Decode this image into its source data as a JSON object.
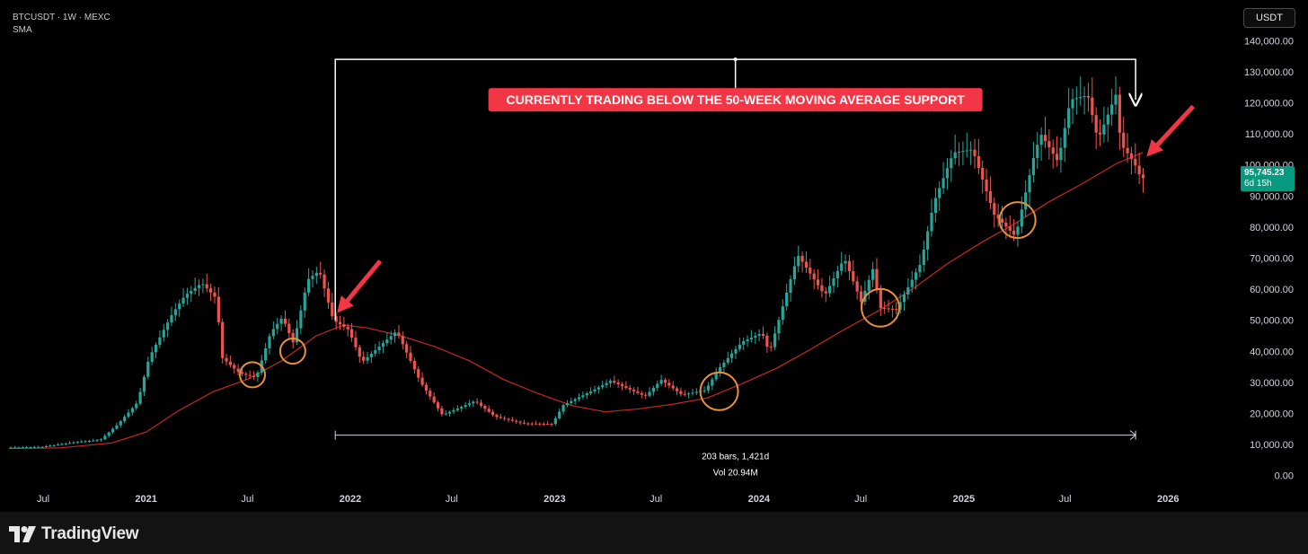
{
  "header": {
    "symbol_line": "BTCUSDT · 1W · MEXC",
    "indicator": "SMA"
  },
  "currency_button": "USDT",
  "last_price": {
    "value": "95,745.23",
    "countdown": "6d 15h",
    "color": "#089981"
  },
  "annotations": {
    "banner": "CURRENTLY TRADING BELOW THE 50-WEEK MOVING AVERAGE SUPPORT",
    "banner_color": "#f23645",
    "measure_line1": "203 bars, 1,421d",
    "measure_line2": "Vol 20.94M"
  },
  "brand": {
    "name": "TradingView",
    "icon": "tradingview-logo-icon"
  },
  "icons": [
    "red-arrow-icon",
    "white-arrow-icon",
    "support-circle-icon"
  ],
  "chart_data": {
    "type": "candlestick",
    "title": "BTCUSDT · 1W · MEXC",
    "up_color": "#26a69a",
    "down_color": "#ef5350",
    "sma_color": "#c62828",
    "y_ticks": [
      "140,000.00",
      "130,000.00",
      "120,000.00",
      "110,000.00",
      "100,000.00",
      "90,000.00",
      "80,000.00",
      "70,000.00",
      "60,000.00",
      "50,000.00",
      "40,000.00",
      "30,000.00",
      "20,000.00",
      "10,000.00",
      "0.00"
    ],
    "y_tick_values": [
      140000,
      130000,
      120000,
      110000,
      100000,
      90000,
      80000,
      70000,
      60000,
      50000,
      40000,
      30000,
      20000,
      10000,
      0
    ],
    "ylim": [
      -3000,
      143000
    ],
    "x_ticks": [
      "Jul",
      "2021",
      "Jul",
      "2022",
      "Jul",
      "2023",
      "Jul",
      "2024",
      "Jul",
      "2025",
      "Jul",
      "2026"
    ],
    "x_tick_dates": [
      "2020-07-01",
      "2021-01-01",
      "2021-07-01",
      "2022-01-01",
      "2022-07-01",
      "2023-01-01",
      "2023-07-01",
      "2024-01-01",
      "2024-07-01",
      "2025-01-01",
      "2025-07-01",
      "2026-01-01"
    ],
    "xlim": [
      "2020-05-01",
      "2026-05-01"
    ],
    "price_path": [
      [
        "2020-05-01",
        9000
      ],
      [
        "2020-07-01",
        9200
      ],
      [
        "2020-09-01",
        10800
      ],
      [
        "2020-10-15",
        11500
      ],
      [
        "2020-11-15",
        16500
      ],
      [
        "2020-12-20",
        23500
      ],
      [
        "2021-01-10",
        38000
      ],
      [
        "2021-02-20",
        52000
      ],
      [
        "2021-03-15",
        58000
      ],
      [
        "2021-04-14",
        62000
      ],
      [
        "2021-05-10",
        57000
      ],
      [
        "2021-05-20",
        38000
      ],
      [
        "2021-06-20",
        33000
      ],
      [
        "2021-07-20",
        31500
      ],
      [
        "2021-08-15",
        46000
      ],
      [
        "2021-09-05",
        51000
      ],
      [
        "2021-09-25",
        42500
      ],
      [
        "2021-10-20",
        63000
      ],
      [
        "2021-11-10",
        66000
      ],
      [
        "2021-12-05",
        50000
      ],
      [
        "2022-01-01",
        47000
      ],
      [
        "2022-01-25",
        36500
      ],
      [
        "2022-03-28",
        46500
      ],
      [
        "2022-05-10",
        30000
      ],
      [
        "2022-06-18",
        19500
      ],
      [
        "2022-08-15",
        24000
      ],
      [
        "2022-09-20",
        19000
      ],
      [
        "2022-11-09",
        16800
      ],
      [
        "2022-12-31",
        16600
      ],
      [
        "2023-01-20",
        22700
      ],
      [
        "2023-03-20",
        28000
      ],
      [
        "2023-04-14",
        30500
      ],
      [
        "2023-06-15",
        25500
      ],
      [
        "2023-07-14",
        30800
      ],
      [
        "2023-08-20",
        26000
      ],
      [
        "2023-10-01",
        27500
      ],
      [
        "2023-10-25",
        34500
      ],
      [
        "2023-12-05",
        43000
      ],
      [
        "2024-01-10",
        46000
      ],
      [
        "2024-01-23",
        39500
      ],
      [
        "2024-02-28",
        62000
      ],
      [
        "2024-03-14",
        71000
      ],
      [
        "2024-05-01",
        58000
      ],
      [
        "2024-06-05",
        70000
      ],
      [
        "2024-07-05",
        56000
      ],
      [
        "2024-07-29",
        68000
      ],
      [
        "2024-08-05",
        54000
      ],
      [
        "2024-09-06",
        53500
      ],
      [
        "2024-10-20",
        68500
      ],
      [
        "2024-11-12",
        88000
      ],
      [
        "2024-12-17",
        104000
      ],
      [
        "2025-01-20",
        105000
      ],
      [
        "2025-02-28",
        84000
      ],
      [
        "2025-04-07",
        77000
      ],
      [
        "2025-05-10",
        103000
      ],
      [
        "2025-05-22",
        110000
      ],
      [
        "2025-06-22",
        101000
      ],
      [
        "2025-07-14",
        121000
      ],
      [
        "2025-08-14",
        122500
      ],
      [
        "2025-09-01",
        108000
      ],
      [
        "2025-10-06",
        124000
      ],
      [
        "2025-10-11",
        107000
      ],
      [
        "2025-11-04",
        101000
      ],
      [
        "2025-11-17",
        95745
      ]
    ],
    "sma_50w": [
      [
        "2020-05-01",
        8700
      ],
      [
        "2020-08-01",
        8900
      ],
      [
        "2020-11-01",
        10500
      ],
      [
        "2021-01-01",
        14000
      ],
      [
        "2021-03-01",
        21000
      ],
      [
        "2021-05-01",
        27000
      ],
      [
        "2021-07-01",
        31000
      ],
      [
        "2021-09-01",
        37000
      ],
      [
        "2021-11-01",
        45000
      ],
      [
        "2021-12-20",
        48500
      ],
      [
        "2022-02-01",
        47500
      ],
      [
        "2022-04-01",
        45000
      ],
      [
        "2022-06-01",
        41500
      ],
      [
        "2022-08-01",
        37000
      ],
      [
        "2022-10-01",
        31000
      ],
      [
        "2022-12-01",
        26500
      ],
      [
        "2023-02-01",
        22500
      ],
      [
        "2023-04-01",
        20500
      ],
      [
        "2023-06-01",
        21500
      ],
      [
        "2023-08-01",
        23000
      ],
      [
        "2023-10-01",
        25000
      ],
      [
        "2023-12-01",
        29500
      ],
      [
        "2024-02-01",
        34500
      ],
      [
        "2024-04-01",
        40500
      ],
      [
        "2024-06-01",
        47000
      ],
      [
        "2024-08-01",
        53000
      ],
      [
        "2024-10-01",
        60000
      ],
      [
        "2024-12-01",
        68000
      ],
      [
        "2025-02-01",
        75000
      ],
      [
        "2025-04-01",
        81000
      ],
      [
        "2025-06-01",
        88000
      ],
      [
        "2025-08-01",
        94000
      ],
      [
        "2025-10-01",
        100500
      ],
      [
        "2025-11-17",
        104000
      ]
    ],
    "support_touches": [
      "2021-07-10",
      "2021-09-20",
      "2023-10-22",
      "2024-08-05",
      "2025-04-07"
    ],
    "annotation_arrows": [
      {
        "date": "2021-12-05",
        "price": 50000
      },
      {
        "date": "2025-11-17",
        "price": 105000
      }
    ],
    "bracket_range": [
      "2021-12-05",
      "2025-11-04"
    ],
    "measure_range": [
      "2021-12-05",
      "2025-11-04"
    ],
    "measure_price": 13000,
    "bracket_top_price": 134000,
    "bracket_end_price": 121000,
    "grid": false
  }
}
